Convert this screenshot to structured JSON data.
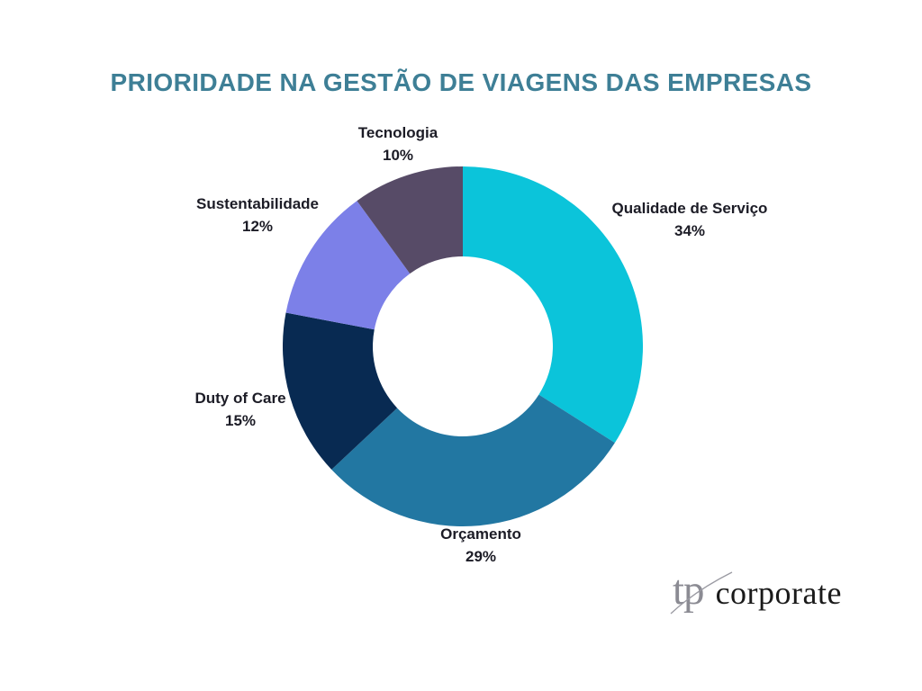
{
  "title": "PRIORIDADE NA GESTÃO DE VIAGENS DAS EMPRESAS",
  "title_color": "#3E7F96",
  "chart_data": {
    "type": "pie",
    "subtype": "donut",
    "title": "PRIORIDADE NA GESTÃO DE VIAGENS DAS EMPRESAS",
    "categories": [
      "Qualidade de Serviço",
      "Orçamento",
      "Duty of Care",
      "Sustentabilidade",
      "Tecnologia"
    ],
    "values": [
      34,
      29,
      15,
      12,
      10
    ],
    "unit": "%",
    "colors": [
      "#0BC4DA",
      "#2277A2",
      "#082A52",
      "#7C80E8",
      "#574B67"
    ],
    "start_angle_deg": 0,
    "direction": "clockwise",
    "inner_radius_ratio": 0.5,
    "legend": "none",
    "label_color": "#1C1C26",
    "segments": [
      {
        "label": "Qualidade de Serviço",
        "pct": "34%"
      },
      {
        "label": "Orçamento",
        "pct": "29%"
      },
      {
        "label": "Duty of Care",
        "pct": "15%"
      },
      {
        "label": "Sustentabilidade",
        "pct": "12%"
      },
      {
        "label": "Tecnologia",
        "pct": "10%"
      }
    ]
  },
  "logo": {
    "mark": "tp",
    "text": "corporate",
    "mark_color": "#8B8B93",
    "text_color": "#1A1A1A"
  }
}
